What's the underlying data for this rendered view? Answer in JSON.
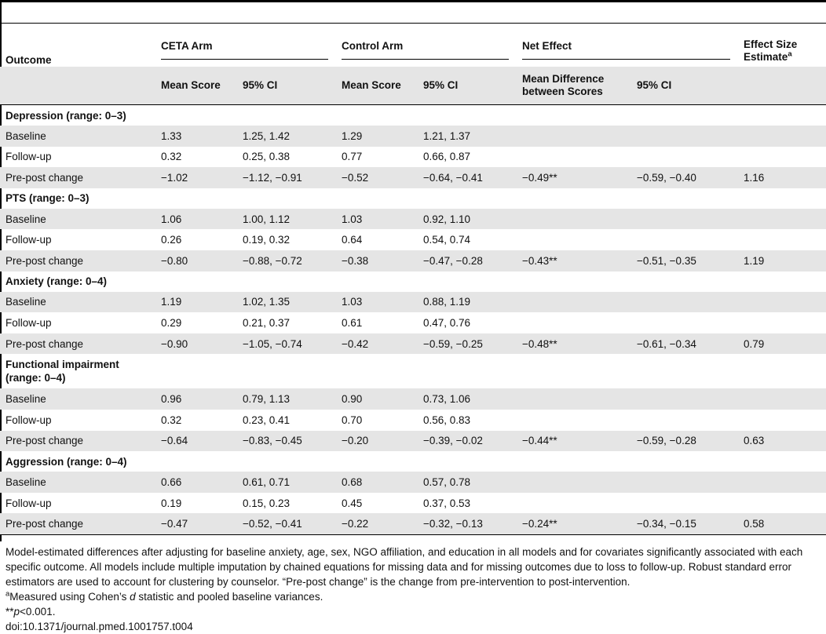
{
  "table": {
    "headers": {
      "outcome": "Outcome",
      "ceta_arm": "CETA Arm",
      "control_arm": "Control Arm",
      "net_effect": "Net Effect",
      "effect_size": "Effect Size Estimate",
      "effect_size_sup": "a",
      "mean_score": "Mean Score",
      "ci": "95% CI",
      "mean_difference": "Mean Difference between Scores"
    },
    "sections": [
      {
        "title": "Depression (range: 0–3)",
        "rows": [
          {
            "label": "Baseline",
            "ceta_mean": "1.33",
            "ceta_ci": "1.25, 1.42",
            "control_mean": "1.29",
            "control_ci": "1.21, 1.37",
            "net_diff": "",
            "net_ci": "",
            "effect": ""
          },
          {
            "label": "Follow-up",
            "ceta_mean": "0.32",
            "ceta_ci": "0.25, 0.38",
            "control_mean": "0.77",
            "control_ci": "0.66, 0.87",
            "net_diff": "",
            "net_ci": "",
            "effect": ""
          },
          {
            "label": "Pre-post change",
            "ceta_mean": "−1.02",
            "ceta_ci": "−1.12, −0.91",
            "control_mean": "−0.52",
            "control_ci": "−0.64, −0.41",
            "net_diff": "−0.49**",
            "net_ci": "−0.59, −0.40",
            "effect": "1.16"
          }
        ]
      },
      {
        "title": "PTS (range: 0–3)",
        "rows": [
          {
            "label": "Baseline",
            "ceta_mean": "1.06",
            "ceta_ci": "1.00, 1.12",
            "control_mean": "1.03",
            "control_ci": "0.92, 1.10",
            "net_diff": "",
            "net_ci": "",
            "effect": ""
          },
          {
            "label": "Follow-up",
            "ceta_mean": "0.26",
            "ceta_ci": "0.19, 0.32",
            "control_mean": "0.64",
            "control_ci": "0.54, 0.74",
            "net_diff": "",
            "net_ci": "",
            "effect": ""
          },
          {
            "label": "Pre-post change",
            "ceta_mean": "−0.80",
            "ceta_ci": "−0.88, −0.72",
            "control_mean": "−0.38",
            "control_ci": "−0.47, −0.28",
            "net_diff": "−0.43**",
            "net_ci": "−0.51, −0.35",
            "effect": "1.19"
          }
        ]
      },
      {
        "title": "Anxiety (range: 0–4)",
        "rows": [
          {
            "label": "Baseline",
            "ceta_mean": "1.19",
            "ceta_ci": "1.02, 1.35",
            "control_mean": "1.03",
            "control_ci": "0.88, 1.19",
            "net_diff": "",
            "net_ci": "",
            "effect": ""
          },
          {
            "label": "Follow-up",
            "ceta_mean": "0.29",
            "ceta_ci": "0.21, 0.37",
            "control_mean": "0.61",
            "control_ci": "0.47, 0.76",
            "net_diff": "",
            "net_ci": "",
            "effect": ""
          },
          {
            "label": "Pre-post change",
            "ceta_mean": "−0.90",
            "ceta_ci": "−1.05, −0.74",
            "control_mean": "−0.42",
            "control_ci": "−0.59, −0.25",
            "net_diff": "−0.48**",
            "net_ci": "−0.61, −0.34",
            "effect": "0.79"
          }
        ]
      },
      {
        "title": "Functional impairment (range: 0–4)",
        "rows": [
          {
            "label": "Baseline",
            "ceta_mean": "0.96",
            "ceta_ci": "0.79, 1.13",
            "control_mean": "0.90",
            "control_ci": "0.73, 1.06",
            "net_diff": "",
            "net_ci": "",
            "effect": ""
          },
          {
            "label": "Follow-up",
            "ceta_mean": "0.32",
            "ceta_ci": "0.23, 0.41",
            "control_mean": "0.70",
            "control_ci": "0.56, 0.83",
            "net_diff": "",
            "net_ci": "",
            "effect": ""
          },
          {
            "label": "Pre-post change",
            "ceta_mean": "−0.64",
            "ceta_ci": "−0.83, −0.45",
            "control_mean": "−0.20",
            "control_ci": "−0.39, −0.02",
            "net_diff": "−0.44**",
            "net_ci": "−0.59, −0.28",
            "effect": "0.63"
          }
        ]
      },
      {
        "title": "Aggression (range: 0–4)",
        "rows": [
          {
            "label": "Baseline",
            "ceta_mean": "0.66",
            "ceta_ci": "0.61, 0.71",
            "control_mean": "0.68",
            "control_ci": "0.57, 0.78",
            "net_diff": "",
            "net_ci": "",
            "effect": ""
          },
          {
            "label": "Follow-up",
            "ceta_mean": "0.19",
            "ceta_ci": "0.15, 0.23",
            "control_mean": "0.45",
            "control_ci": "0.37, 0.53",
            "net_diff": "",
            "net_ci": "",
            "effect": ""
          },
          {
            "label": "Pre-post change",
            "ceta_mean": "−0.47",
            "ceta_ci": "−0.52, −0.41",
            "control_mean": "−0.22",
            "control_ci": "−0.32, −0.13",
            "net_diff": "−0.24**",
            "net_ci": "−0.34, −0.15",
            "effect": "0.58"
          }
        ]
      }
    ]
  },
  "notes": {
    "main": "Model-estimated differences after adjusting for baseline anxiety, age, sex, NGO affiliation, and education in all models and for covariates significantly associated with each specific outcome. All models include multiple imputation by chained equations for missing data and for missing outcomes due to loss to follow-up. Robust standard error estimators are used to account for clustering by counselor. “Pre-post change” is the change from pre-intervention to post-intervention.",
    "footnote_a_sup": "a",
    "footnote_a_pre": "Measured using Cohen’s ",
    "footnote_a_d": "d",
    "footnote_a_post": " statistic and pooled baseline variances.",
    "footnote_p_stars": "**",
    "footnote_p_p": "p",
    "footnote_p_rest": "<0.001.",
    "doi": "doi:10.1371/journal.pmed.1001757.t004"
  }
}
